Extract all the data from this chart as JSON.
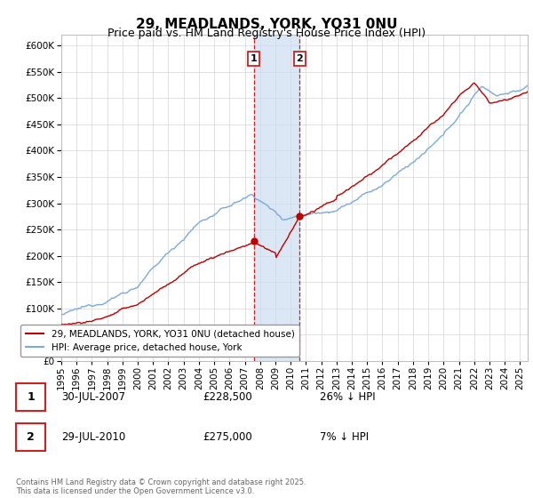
{
  "title": "29, MEADLANDS, YORK, YO31 0NU",
  "subtitle": "Price paid vs. HM Land Registry's House Price Index (HPI)",
  "ylim": [
    0,
    620000
  ],
  "yticks": [
    0,
    50000,
    100000,
    150000,
    200000,
    250000,
    300000,
    350000,
    400000,
    450000,
    500000,
    550000,
    600000
  ],
  "xlim_start": 1995.0,
  "xlim_end": 2025.5,
  "sale1_date": 2007.58,
  "sale1_price": 228500,
  "sale1_label": "1",
  "sale2_date": 2010.58,
  "sale2_price": 275000,
  "sale2_label": "2",
  "red_line_color": "#bb0000",
  "blue_line_color": "#7aaadd",
  "shade_color": "#ccddf0",
  "annotation_box_color": "#cc2222",
  "legend_entry1": "29, MEADLANDS, YORK, YO31 0NU (detached house)",
  "legend_entry2": "HPI: Average price, detached house, York",
  "table_row1": [
    "1",
    "30-JUL-2007",
    "£228,500",
    "26% ↓ HPI"
  ],
  "table_row2": [
    "2",
    "29-JUL-2010",
    "£275,000",
    "7% ↓ HPI"
  ],
  "footnote": "Contains HM Land Registry data © Crown copyright and database right 2025.\nThis data is licensed under the Open Government Licence v3.0.",
  "bg_color": "#ffffff",
  "plot_bg_color": "#ffffff",
  "grid_color": "#dddddd",
  "title_fontsize": 11,
  "subtitle_fontsize": 9,
  "tick_fontsize": 7.5,
  "legend_fontsize": 7.5,
  "table_fontsize": 8.5
}
